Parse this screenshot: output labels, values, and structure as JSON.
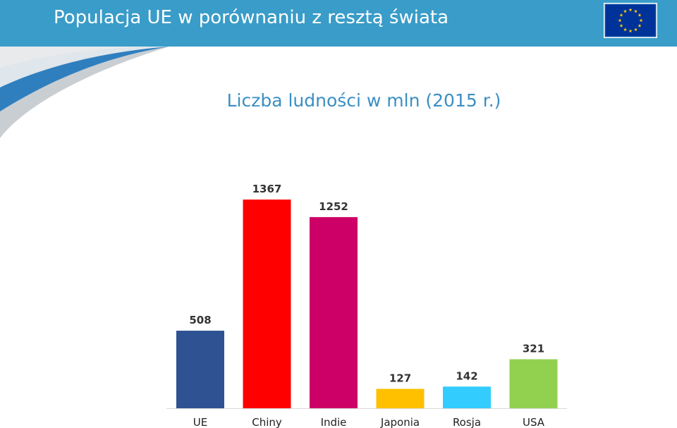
{
  "header": {
    "title": "Populacja UE w porównaniu z resztą świata",
    "flag_icon": "eu-flag-icon"
  },
  "colors": {
    "header_bg": "#3a9cc8",
    "subtitle": "#3a8fc4"
  },
  "chart_data": {
    "type": "bar",
    "title": "Liczba ludności w mln (2015 r.)",
    "xlabel": "",
    "ylabel": "",
    "categories": [
      "UE",
      "Chiny",
      "Indie",
      "Japonia",
      "Rosja",
      "USA"
    ],
    "values": [
      508,
      1367,
      1252,
      127,
      142,
      321
    ],
    "colors": [
      "#2e5292",
      "#fe0000",
      "#cc0066",
      "#ffc000",
      "#33ccff",
      "#92d050"
    ],
    "ylim": [
      0,
      1367
    ],
    "grid": false,
    "data_labels": true,
    "legend": "none"
  }
}
